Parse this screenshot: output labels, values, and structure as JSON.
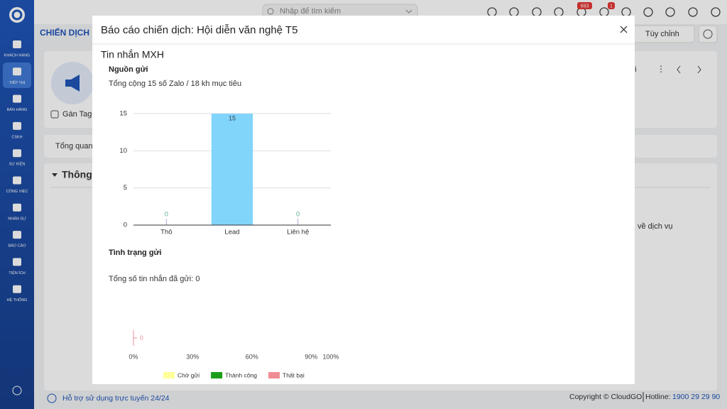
{
  "sidebar": {
    "items": [
      "KHÁCH HÀNG",
      "TIẾP THỊ",
      "BÁN HÀNG",
      "CSKH",
      "SỰ KIỆN",
      "CÔNG VIỆC",
      "NHÂN SỰ",
      "BÁO CÁO",
      "TIỆN ÍCH",
      "HỆ THỐNG"
    ]
  },
  "topbar": {
    "search_placeholder": "Nhập để tìm kiếm",
    "notification_count": 693,
    "message_count": 1
  },
  "page": {
    "breadcrumb": "CHIẾN DỊCH",
    "customize_button": "Tùy chỉnh",
    "tag_button": "Gán Tag",
    "tab": "Tổng quan",
    "section": "Thông",
    "partial_text_1": "ồi",
    "partial_text_2": "về dịch vụ"
  },
  "footer": {
    "support": "Hỗ trợ sử dụng trực tuyến 24/24",
    "copyright": "Copyright © CloudGO",
    "hotline_label": "Hotline:",
    "hotline": "1900 29 29 90"
  },
  "modal": {
    "title": "Báo cáo chiến dịch: Hội diễn văn nghệ T5",
    "section": "Tin nhắn MXH"
  },
  "chart_data": [
    {
      "type": "bar",
      "title": "Nguồn gửi",
      "subtitle": "Tổng cộng 15 số Zalo / 18 kh mục tiêu",
      "categories": [
        "Thô",
        "Lead",
        "Liên hệ"
      ],
      "values": [
        0,
        15,
        0
      ],
      "color": "#81d4fa",
      "ylim": [
        0,
        15
      ],
      "yticks": [
        0,
        5,
        10,
        15
      ],
      "grid": true
    },
    {
      "type": "stacked_barh",
      "title": "Tình trạng gửi",
      "subtitle": "Tổng số tin nhắn đã gửi: 0",
      "categories": [
        null
      ],
      "series": [
        {
          "name": "Chờ gửi",
          "color": "#ffff99",
          "values": [
            0
          ]
        },
        {
          "name": "Thành công",
          "color": "#1a9e1a",
          "values": [
            0
          ]
        },
        {
          "name": "Thất bại",
          "color": "#f08c94",
          "values": [
            0
          ]
        }
      ],
      "xlim": [
        0,
        100
      ],
      "xticks": [
        {
          "value": 0,
          "label": "0%"
        },
        {
          "value": 30,
          "label": "30%"
        },
        {
          "value": 60,
          "label": "60%"
        },
        {
          "value": 90,
          "label": "90%"
        },
        {
          "value": 100,
          "label": "100%"
        }
      ],
      "legend": "bottom"
    }
  ]
}
